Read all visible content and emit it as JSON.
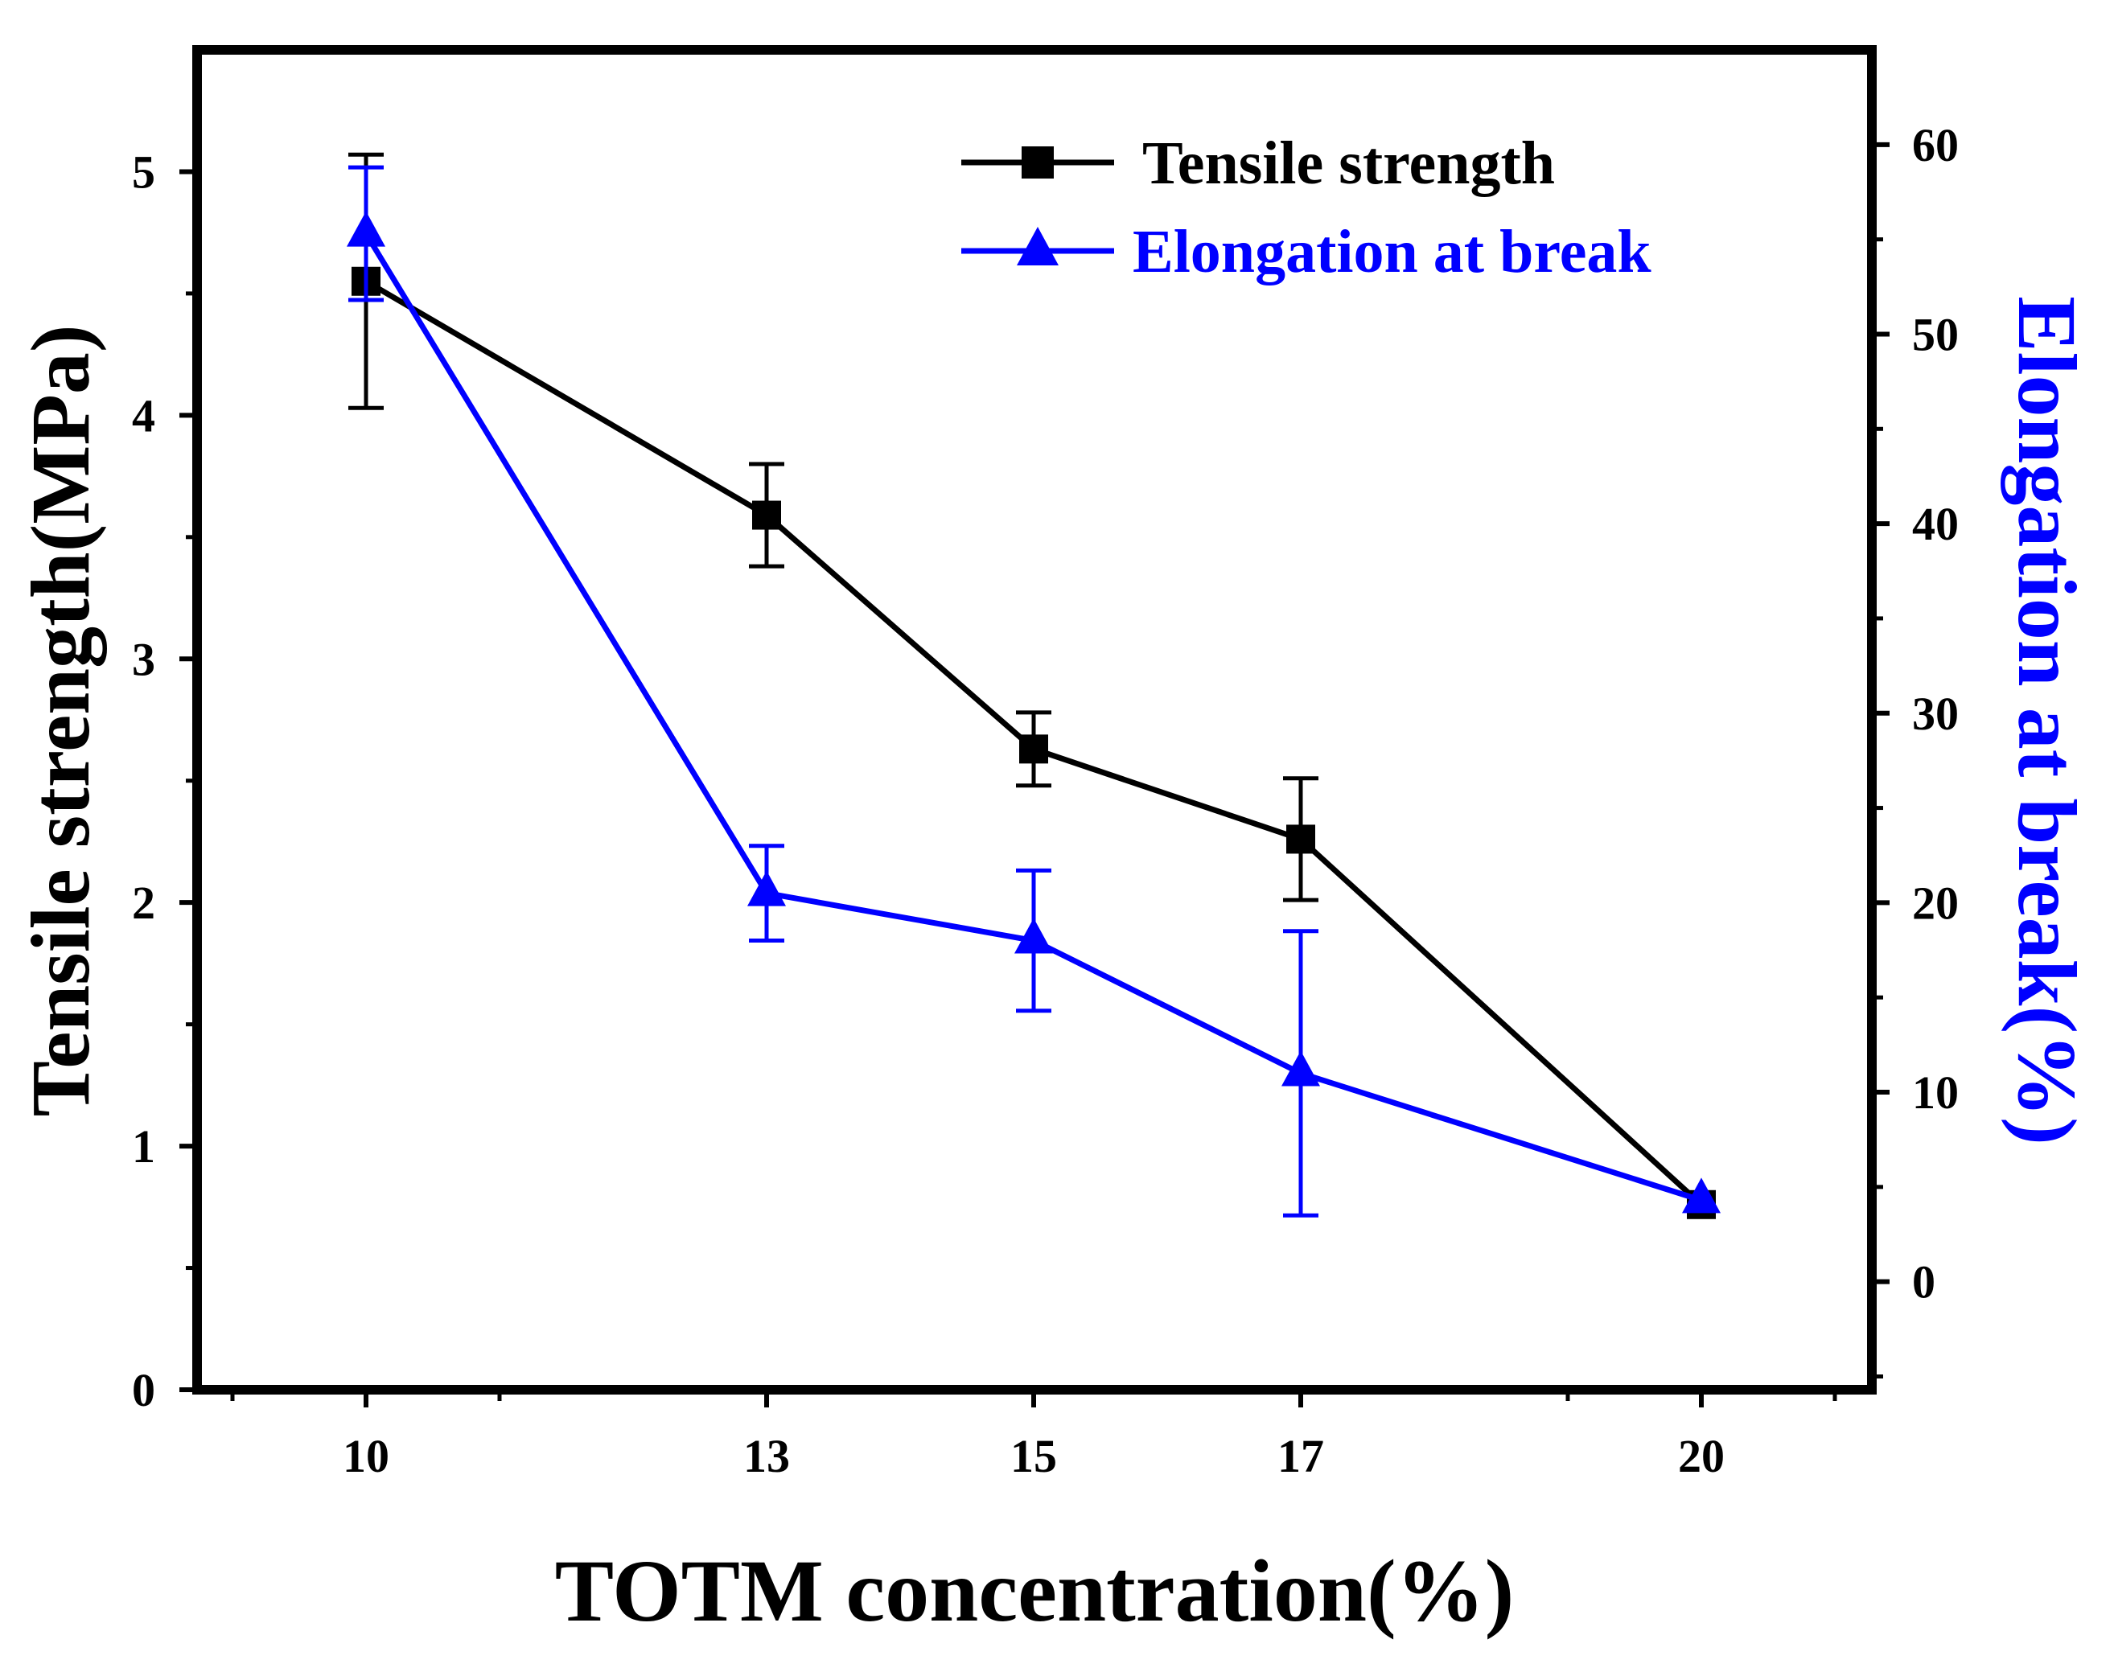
{
  "chart_data": {
    "type": "line",
    "xlabel": "TOTM concentration(%)",
    "ylabel_left": "Tensile strength(MPa)",
    "ylabel_right": "Elongation at break(%)",
    "x_ticks": [
      "10",
      "13",
      "15",
      "17",
      "20"
    ],
    "y_left_ticks": [
      "0",
      "1",
      "2",
      "3",
      "4",
      "5"
    ],
    "y_right_ticks": [
      "0",
      "10",
      "20",
      "30",
      "40",
      "50",
      "60"
    ],
    "y_left_range": [
      0,
      5.5
    ],
    "y_right_range": [
      -5.7,
      65
    ],
    "series": [
      {
        "name": "Tensile strength",
        "axis": "left",
        "color": "#000000",
        "marker": "square",
        "points": [
          {
            "x": "10",
            "y": 4.55,
            "err": 0.52
          },
          {
            "x": "13",
            "y": 3.59,
            "err": 0.21
          },
          {
            "x": "15",
            "y": 2.63,
            "err": 0.15
          },
          {
            "x": "17",
            "y": 2.26,
            "err": 0.25
          },
          {
            "x": "20",
            "y": 0.76,
            "err": 0.0
          }
        ]
      },
      {
        "name": "Elongation at break",
        "axis": "right",
        "color": "#0000ff",
        "marker": "triangle",
        "points": [
          {
            "x": "10",
            "y": 55.3,
            "err": 3.5
          },
          {
            "x": "13",
            "y": 20.5,
            "err": 2.5
          },
          {
            "x": "15",
            "y": 18.0,
            "err": 3.7
          },
          {
            "x": "17",
            "y": 11.0,
            "err": 7.5
          },
          {
            "x": "20",
            "y": 4.3,
            "err": 0.0
          }
        ]
      }
    ]
  }
}
